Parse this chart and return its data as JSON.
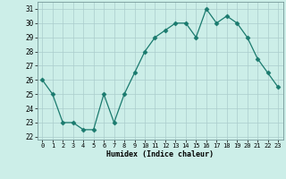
{
  "x": [
    0,
    1,
    2,
    3,
    4,
    5,
    6,
    7,
    8,
    9,
    10,
    11,
    12,
    13,
    14,
    15,
    16,
    17,
    18,
    19,
    20,
    21,
    22,
    23
  ],
  "y": [
    26,
    25,
    23,
    23,
    22.5,
    22.5,
    25,
    23,
    25,
    26.5,
    28,
    29,
    29.5,
    30,
    30,
    29,
    31,
    30,
    30.5,
    30,
    29,
    27.5,
    26.5,
    25.5
  ],
  "line_color": "#1a7a6e",
  "marker": "D",
  "marker_size": 2.5,
  "bg_color": "#cceee8",
  "grid_color": "#aacccc",
  "xlabel": "Humidex (Indice chaleur)",
  "ylim": [
    21.8,
    31.5
  ],
  "yticks": [
    22,
    23,
    24,
    25,
    26,
    27,
    28,
    29,
    30,
    31
  ],
  "xticks": [
    0,
    1,
    2,
    3,
    4,
    5,
    6,
    7,
    8,
    9,
    10,
    11,
    12,
    13,
    14,
    15,
    16,
    17,
    18,
    19,
    20,
    21,
    22,
    23
  ],
  "xlim": [
    -0.5,
    23.5
  ]
}
